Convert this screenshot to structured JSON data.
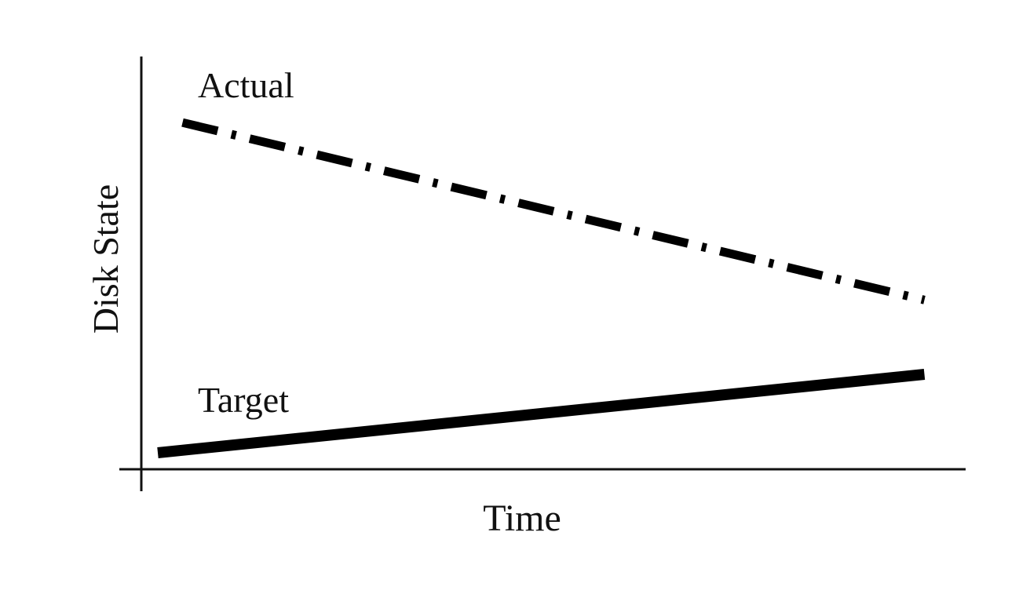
{
  "chart_data": {
    "type": "line",
    "title": "",
    "xlabel": "Time",
    "ylabel": "Disk State",
    "xlim": [
      0,
      10
    ],
    "ylim": [
      0,
      10
    ],
    "grid": false,
    "legend": "none",
    "series": [
      {
        "name": "Actual",
        "style": "dash-dot",
        "color": "#000000",
        "x": [
          0.5,
          9.5
        ],
        "y": [
          8.4,
          4.1
        ]
      },
      {
        "name": "Target",
        "style": "solid",
        "color": "#000000",
        "x": [
          0.2,
          9.5
        ],
        "y": [
          0.4,
          2.3
        ]
      }
    ]
  }
}
